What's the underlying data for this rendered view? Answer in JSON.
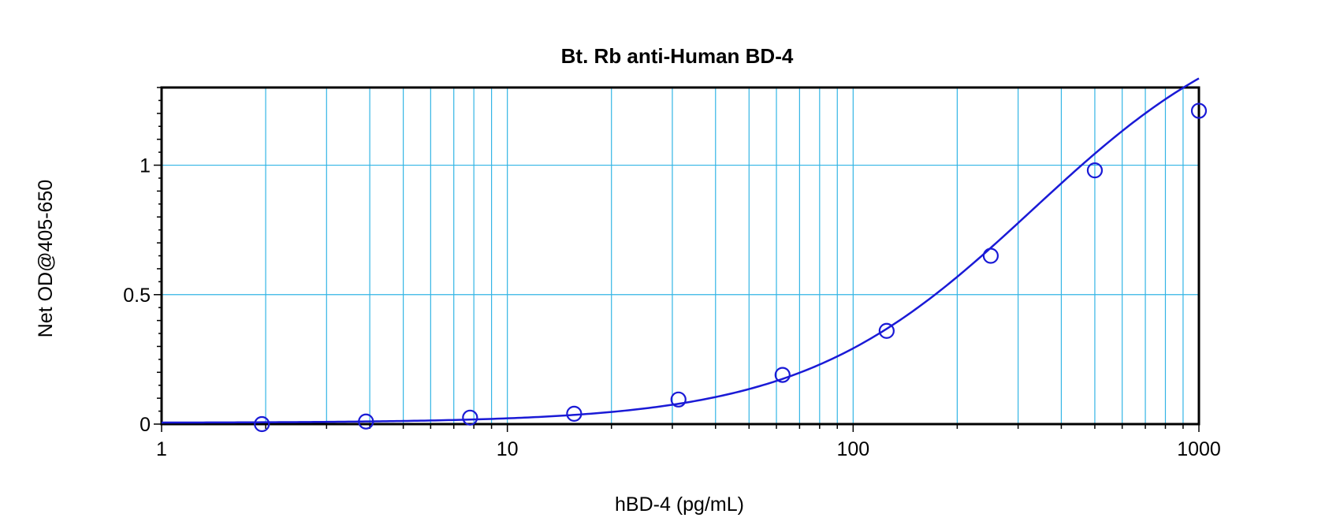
{
  "chart_data": {
    "type": "scatter",
    "title": "Bt. Rb anti-Human BD-4",
    "xlabel": "hBD-4 (pg/mL)",
    "ylabel": "Net OD@405-650",
    "xscale": "log",
    "xlim": [
      1,
      1000
    ],
    "ylim": [
      0,
      1.3
    ],
    "x_ticks": [
      {
        "value": 1,
        "label": "1"
      },
      {
        "value": 10,
        "label": "10"
      },
      {
        "value": 100,
        "label": "100"
      },
      {
        "value": 1000,
        "label": "1000"
      }
    ],
    "y_ticks": [
      {
        "value": 0,
        "label": "0"
      },
      {
        "value": 0.5,
        "label": "0.5"
      },
      {
        "value": 1,
        "label": "1"
      }
    ],
    "grid": true,
    "series": [
      {
        "points": [
          {
            "x": 1.95,
            "y": 0.0
          },
          {
            "x": 3.9,
            "y": 0.01
          },
          {
            "x": 7.8,
            "y": 0.025
          },
          {
            "x": 15.6,
            "y": 0.04
          },
          {
            "x": 31.25,
            "y": 0.095
          },
          {
            "x": 62.5,
            "y": 0.19
          },
          {
            "x": 125,
            "y": 0.36
          },
          {
            "x": 250,
            "y": 0.65
          },
          {
            "x": 500,
            "y": 0.98
          },
          {
            "x": 1000,
            "y": 1.21
          }
        ]
      }
    ],
    "fit_curve": {
      "type": "4PL",
      "bottom": 0.005,
      "top": 1.65,
      "ec50": 330,
      "hill": 1.3
    },
    "colors": {
      "grid": "#33b5e5",
      "series": "#1a1ad6",
      "axis": "#000000"
    }
  }
}
